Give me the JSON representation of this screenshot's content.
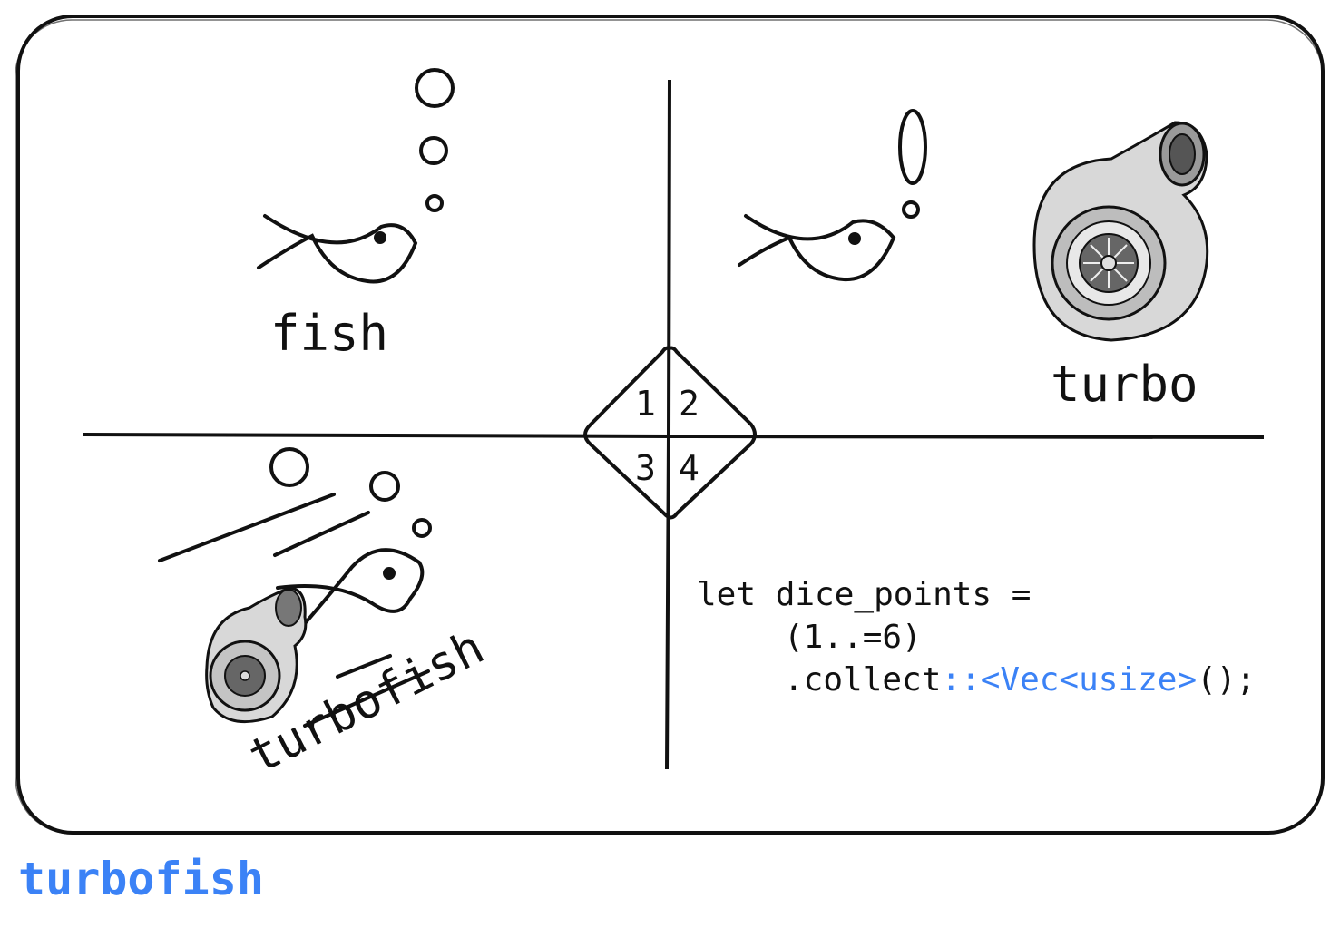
{
  "quadrants": {
    "q1_label": "fish",
    "q2_label": "turbo",
    "q3_label": "turbofish"
  },
  "center_numbers": [
    "1",
    "2",
    "3",
    "4"
  ],
  "code": {
    "line1": "let dice_points =",
    "line2": "(1..=6)",
    "line3_plain_start": ".collect",
    "line3_accent": "::<Vec<usize>",
    "line3_plain_end": "();"
  },
  "caption": "turbofish",
  "colors": {
    "accent": "#3b82f6",
    "ink": "#111111"
  }
}
